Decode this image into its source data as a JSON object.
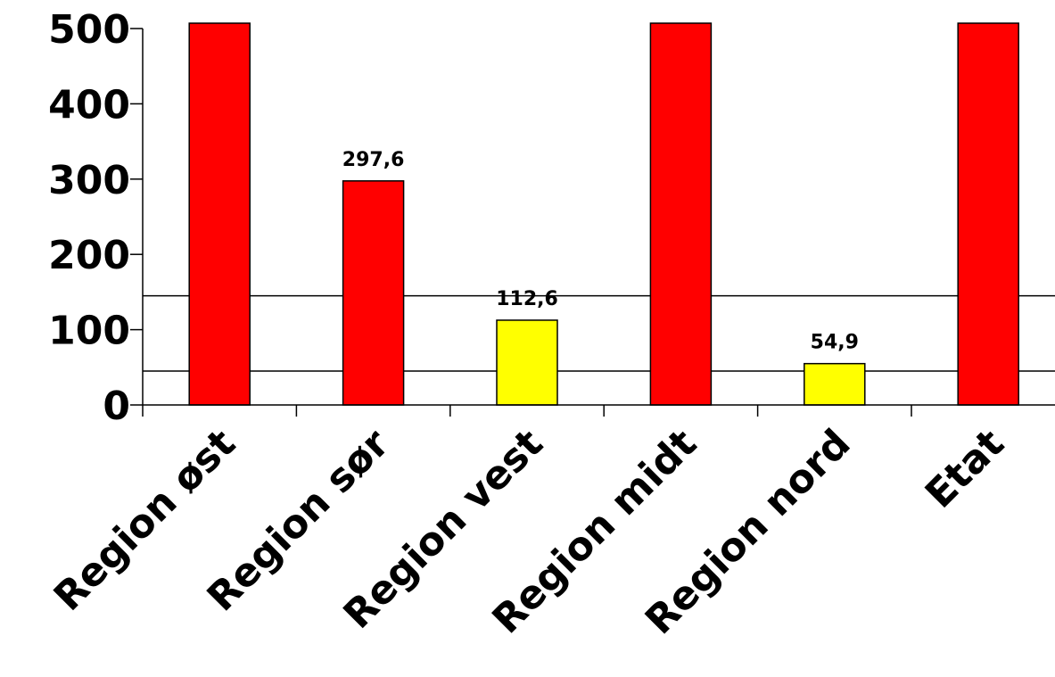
{
  "chart_data": {
    "type": "bar",
    "title": "",
    "xlabel": "",
    "ylabel": "",
    "ylim": [
      0,
      500
    ],
    "yticks": [
      "0",
      "100",
      "200",
      "300",
      "400",
      "500"
    ],
    "categories": [
      "Region øst",
      "Region sør",
      "Region vest",
      "Region midt",
      "Region nord",
      "Etat"
    ],
    "values": [
      510,
      297.6,
      112.6,
      510,
      54.9,
      510
    ],
    "value_labels": [
      "",
      "297,6",
      "112,6",
      "",
      "54,9",
      ""
    ],
    "bar_colors": [
      "#ff0000",
      "#ff0000",
      "#ffff00",
      "#ff0000",
      "#ffff00",
      "#ff0000"
    ],
    "reference_lines": [
      45,
      145
    ],
    "grid": false,
    "legend": "none"
  }
}
